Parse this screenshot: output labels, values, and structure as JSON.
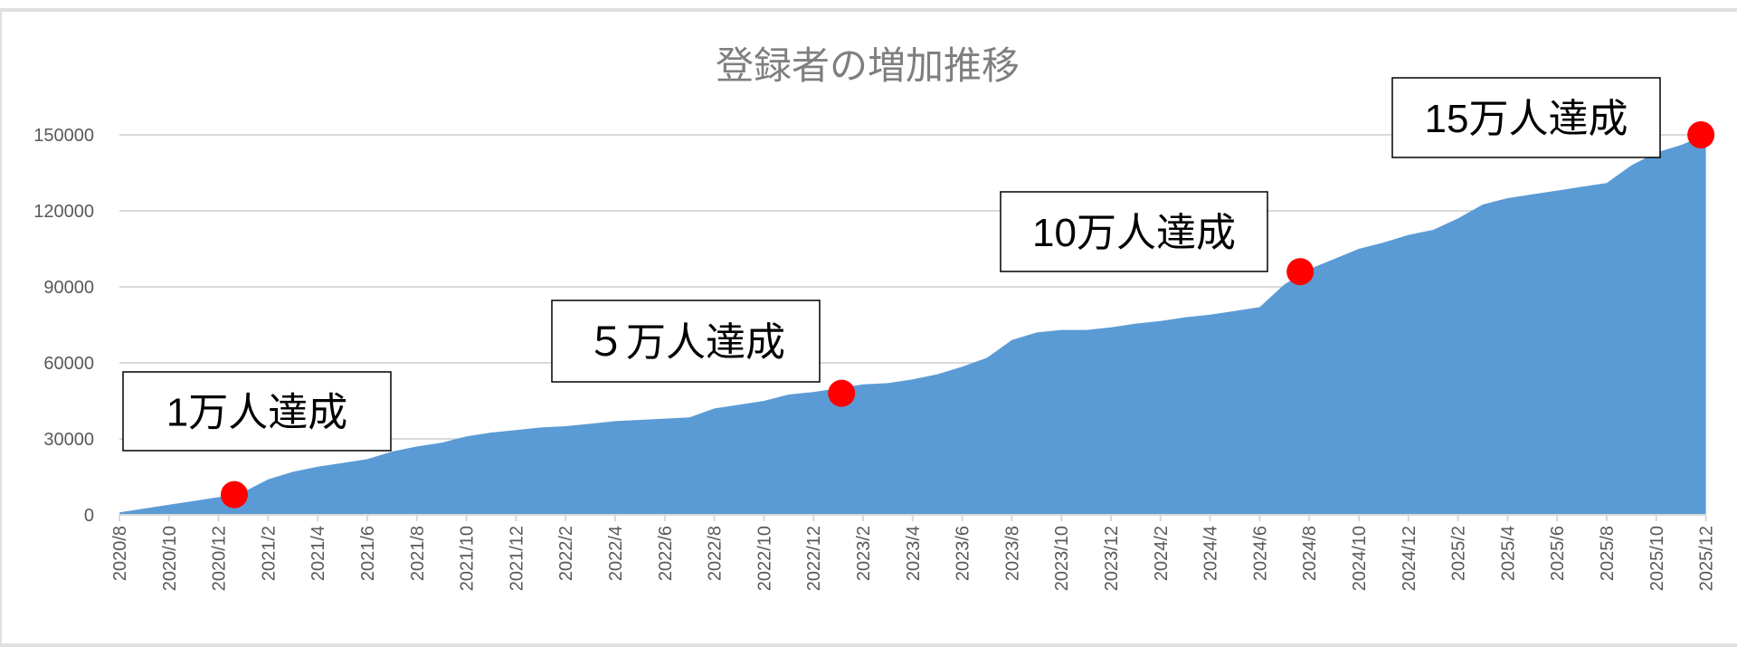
{
  "chart_data": {
    "type": "area",
    "title": "登録者の増加推移",
    "xlabel": "",
    "ylabel": "",
    "ylim": [
      0,
      150000
    ],
    "yticks": [
      0,
      30000,
      60000,
      90000,
      120000,
      150000
    ],
    "ytick_labels": [
      "0",
      "30000",
      "60000",
      "90000",
      "120000",
      "150000"
    ],
    "grid": "horizontal",
    "legend": "none",
    "fill_color": "#5b9bd5",
    "marker_color": "#ff0000",
    "xtick_labels": [
      "2020/8",
      "2020/10",
      "2020/12",
      "2021/2",
      "2021/4",
      "2021/6",
      "2021/8",
      "2021/10",
      "2021/12",
      "2022/2",
      "2022/4",
      "2022/6",
      "2022/8",
      "2022/10",
      "2022/12",
      "2023/2",
      "2023/4",
      "2023/6",
      "2023/8",
      "2023/10",
      "2023/12",
      "2024/2",
      "2024/4",
      "2024/6",
      "2024/8",
      "2024/10",
      "2024/12",
      "2025/2",
      "2025/4",
      "2025/6",
      "2025/8",
      "2025/10",
      "2025/12"
    ],
    "x": [
      "2020/8",
      "2020/9",
      "2020/10",
      "2020/11",
      "2020/12",
      "2021/1",
      "2021/2",
      "2021/3",
      "2021/4",
      "2021/5",
      "2021/6",
      "2021/7",
      "2021/8",
      "2021/9",
      "2021/10",
      "2021/11",
      "2021/12",
      "2022/1",
      "2022/2",
      "2022/3",
      "2022/4",
      "2022/5",
      "2022/6",
      "2022/7",
      "2022/8",
      "2022/9",
      "2022/10",
      "2022/11",
      "2022/12",
      "2023/1",
      "2023/2",
      "2023/3",
      "2023/4",
      "2023/5",
      "2023/6",
      "2023/7",
      "2023/8",
      "2023/9",
      "2023/10",
      "2023/11",
      "2023/12",
      "2024/1",
      "2024/2",
      "2024/3",
      "2024/4",
      "2024/5",
      "2024/6",
      "2024/7",
      "2024/8",
      "2024/9",
      "2024/10",
      "2024/11",
      "2024/12",
      "2025/1",
      "2025/2",
      "2025/3",
      "2025/4",
      "2025/5",
      "2025/6",
      "2025/7",
      "2025/8",
      "2025/9",
      "2025/10",
      "2025/11",
      "2025/12"
    ],
    "values": [
      1000,
      2500,
      4000,
      5500,
      7000,
      9000,
      14000,
      17000,
      19000,
      20500,
      22000,
      25000,
      27000,
      28500,
      31000,
      32500,
      33500,
      34500,
      35000,
      36000,
      37000,
      37500,
      38000,
      38500,
      42000,
      43500,
      45000,
      47500,
      48500,
      50000,
      51500,
      52000,
      53500,
      55500,
      58500,
      62000,
      69000,
      72000,
      73000,
      73000,
      74000,
      75500,
      76500,
      78000,
      79000,
      80500,
      82000,
      91000,
      97000,
      101000,
      105000,
      107500,
      110500,
      112500,
      117000,
      122500,
      125000,
      126500,
      128000,
      129500,
      131000,
      138000,
      143000,
      146000,
      150000
    ],
    "annotations": [
      {
        "label": "1万人達成",
        "x": "2020/12/20",
        "y": 8000
      },
      {
        "label": "５万人達成",
        "x": "2023/1/5",
        "y": 48000
      },
      {
        "label": "10万人達成",
        "x": "2024/7/20",
        "y": 96000
      },
      {
        "label": "15万人達成",
        "x": "2025/11/25",
        "y": 150000
      }
    ]
  }
}
